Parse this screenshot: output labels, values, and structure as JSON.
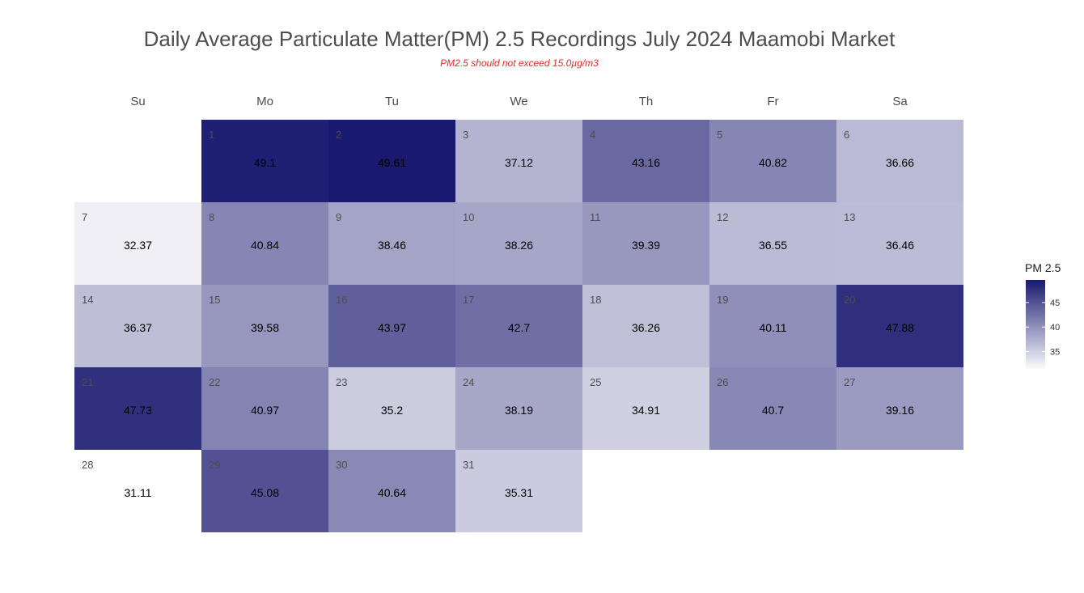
{
  "chart_data": {
    "type": "heatmap",
    "title": "Daily Average Particulate Matter(PM) 2.5 Recordings July 2024 Maamobi Market",
    "subtitle": "PM2.5 should not exceed 15.0µg/m3",
    "weekdays": [
      "Su",
      "Mo",
      "Tu",
      "We",
      "Th",
      "Fr",
      "Sa"
    ],
    "first_weekday_index": 1,
    "days": [
      {
        "day": "1",
        "value": 49.1,
        "label": "49.1"
      },
      {
        "day": "2",
        "value": 49.61,
        "label": "49.61"
      },
      {
        "day": "3",
        "value": 37.12,
        "label": "37.12"
      },
      {
        "day": "4",
        "value": 43.16,
        "label": "43.16"
      },
      {
        "day": "5",
        "value": 40.82,
        "label": "40.82"
      },
      {
        "day": "6",
        "value": 36.66,
        "label": "36.66"
      },
      {
        "day": "7",
        "value": 32.37,
        "label": "32.37"
      },
      {
        "day": "8",
        "value": 40.84,
        "label": "40.84"
      },
      {
        "day": "9",
        "value": 38.46,
        "label": "38.46"
      },
      {
        "day": "10",
        "value": 38.26,
        "label": "38.26"
      },
      {
        "day": "11",
        "value": 39.39,
        "label": "39.39"
      },
      {
        "day": "12",
        "value": 36.55,
        "label": "36.55"
      },
      {
        "day": "13",
        "value": 36.46,
        "label": "36.46"
      },
      {
        "day": "14",
        "value": 36.37,
        "label": "36.37"
      },
      {
        "day": "15",
        "value": 39.58,
        "label": "39.58"
      },
      {
        "day": "16",
        "value": 43.97,
        "label": "43.97"
      },
      {
        "day": "17",
        "value": 42.7,
        "label": "42.7"
      },
      {
        "day": "18",
        "value": 36.26,
        "label": "36.26"
      },
      {
        "day": "19",
        "value": 40.11,
        "label": "40.11"
      },
      {
        "day": "20",
        "value": 47.88,
        "label": "47.88"
      },
      {
        "day": "21",
        "value": 47.73,
        "label": "47.73"
      },
      {
        "day": "22",
        "value": 40.97,
        "label": "40.97"
      },
      {
        "day": "23",
        "value": 35.2,
        "label": "35.2"
      },
      {
        "day": "24",
        "value": 38.19,
        "label": "38.19"
      },
      {
        "day": "25",
        "value": 34.91,
        "label": "34.91"
      },
      {
        "day": "26",
        "value": 40.7,
        "label": "40.7"
      },
      {
        "day": "27",
        "value": 39.16,
        "label": "39.16"
      },
      {
        "day": "28",
        "value": 31.11,
        "label": "31.11"
      },
      {
        "day": "29",
        "value": 45.08,
        "label": "45.08"
      },
      {
        "day": "30",
        "value": 40.64,
        "label": "40.64"
      },
      {
        "day": "31",
        "value": 35.31,
        "label": "35.31"
      }
    ],
    "color_scale": {
      "low": "#ffffff",
      "high": "#191970",
      "domain": [
        31.11,
        49.61
      ]
    },
    "legend": {
      "title": "PM 2.5",
      "ticks": [
        {
          "value": 35,
          "label": "35"
        },
        {
          "value": 40,
          "label": "40"
        },
        {
          "value": 45,
          "label": "45"
        }
      ],
      "position": "right"
    }
  }
}
